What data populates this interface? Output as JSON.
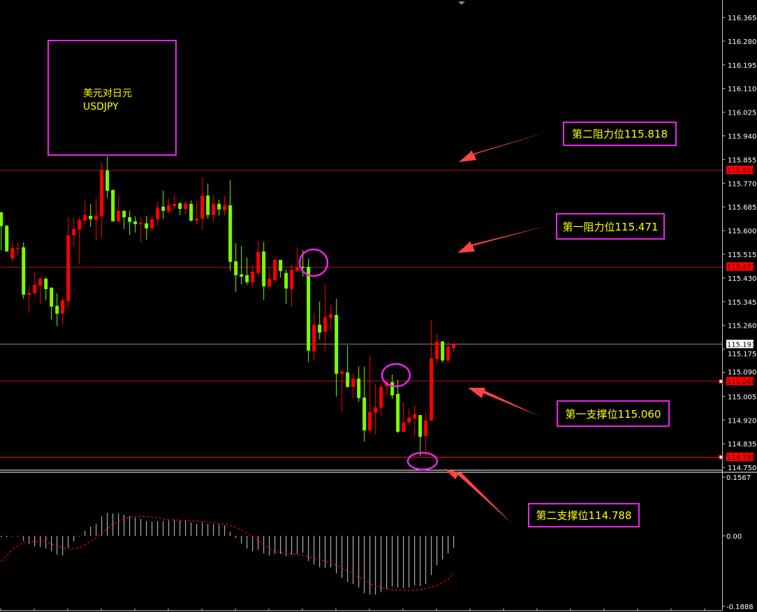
{
  "colors": {
    "background": "#000000",
    "bullish": "#ff0000",
    "bearish": "#7cfc00",
    "annotation_border": "#ee22ee",
    "annotation_text": "#ffff00",
    "arrow": "#ff4444",
    "current_price_line": "#7a8a9a"
  },
  "title_box": {
    "line1": "美元对日元",
    "line2": "USDJPY"
  },
  "annotations": [
    {
      "label": "第二阻力位115.818",
      "level": 115.818
    },
    {
      "label": "第一阻力位115.471",
      "level": 115.471
    },
    {
      "label": "第一支撑位115.060",
      "level": 115.06
    },
    {
      "label": "第二支撑位114.788",
      "level": 114.788
    }
  ],
  "chart_data": [
    {
      "type": "candlestick",
      "ylim": [
        114.73,
        116.425
      ],
      "y_ticks": [
        "116.365",
        "116.280",
        "116.195",
        "116.110",
        "116.025",
        "115.940",
        "115.855",
        "115.770",
        "115.685",
        "115.600",
        "115.515",
        "115.430",
        "115.345",
        "115.260",
        "115.175",
        "115.090",
        "115.005",
        "114.920",
        "114.835",
        "114.750"
      ],
      "price_tags": [
        {
          "label": "115.818",
          "value": 115.818,
          "style": "level"
        },
        {
          "label": "115.471",
          "value": 115.471,
          "style": "level"
        },
        {
          "label": "115.193",
          "value": 115.193,
          "style": "current"
        },
        {
          "label": "115.060",
          "value": 115.06,
          "style": "level"
        },
        {
          "label": "114.788",
          "value": 114.788,
          "style": "level"
        }
      ],
      "candles_ohlc": [
        [
          115.666,
          115.666,
          115.53,
          115.616
        ],
        [
          115.618,
          115.618,
          115.525,
          115.525
        ],
        [
          115.5,
          115.558,
          115.488,
          115.538
        ],
        [
          115.538,
          115.558,
          115.51,
          115.538
        ],
        [
          115.54,
          115.558,
          115.355,
          115.37
        ],
        [
          115.37,
          115.402,
          115.305,
          115.377
        ],
        [
          115.375,
          115.453,
          115.372,
          115.405
        ],
        [
          115.402,
          115.433,
          115.335,
          115.427
        ],
        [
          115.427,
          115.433,
          115.35,
          115.39
        ],
        [
          115.395,
          115.397,
          115.28,
          115.327
        ],
        [
          115.33,
          115.375,
          115.257,
          115.302
        ],
        [
          115.302,
          115.36,
          115.265,
          115.35
        ],
        [
          115.347,
          115.648,
          115.322,
          115.583
        ],
        [
          115.583,
          115.648,
          115.543,
          115.606
        ],
        [
          115.603,
          115.648,
          115.478,
          115.638
        ],
        [
          115.636,
          115.708,
          115.623,
          115.656
        ],
        [
          115.653,
          115.696,
          115.613,
          115.641
        ],
        [
          115.638,
          115.718,
          115.565,
          115.653
        ],
        [
          115.651,
          115.844,
          115.575,
          115.819
        ],
        [
          115.816,
          115.866,
          115.718,
          115.743
        ],
        [
          115.746,
          115.746,
          115.633,
          115.633
        ],
        [
          115.633,
          115.728,
          115.631,
          115.671
        ],
        [
          115.671,
          115.673,
          115.606,
          115.648
        ],
        [
          115.648,
          115.671,
          115.585,
          115.631
        ],
        [
          115.633,
          115.651,
          115.593,
          115.623
        ],
        [
          115.623,
          115.648,
          115.56,
          115.628
        ],
        [
          115.626,
          115.653,
          115.568,
          115.608
        ],
        [
          115.608,
          115.656,
          115.598,
          115.641
        ],
        [
          115.641,
          115.703,
          115.618,
          115.683
        ],
        [
          115.686,
          115.743,
          115.641,
          115.671
        ],
        [
          115.668,
          115.716,
          115.661,
          115.691
        ],
        [
          115.688,
          115.728,
          115.676,
          115.696
        ],
        [
          115.698,
          115.703,
          115.656,
          115.678
        ],
        [
          115.678,
          115.706,
          115.658,
          115.696
        ],
        [
          115.696,
          115.708,
          115.633,
          115.636
        ],
        [
          115.636,
          115.706,
          115.621,
          115.643
        ],
        [
          115.643,
          115.791,
          115.603,
          115.726
        ],
        [
          115.726,
          115.769,
          115.643,
          115.656
        ],
        [
          115.656,
          115.728,
          115.633,
          115.696
        ],
        [
          115.696,
          115.711,
          115.653,
          115.676
        ],
        [
          115.673,
          115.726,
          115.653,
          115.691
        ],
        [
          115.691,
          115.781,
          115.455,
          115.488
        ],
        [
          115.49,
          115.555,
          115.38,
          115.44
        ],
        [
          115.443,
          115.545,
          115.407,
          115.435
        ],
        [
          115.44,
          115.503,
          115.405,
          115.415
        ],
        [
          115.415,
          115.478,
          115.395,
          115.453
        ],
        [
          115.448,
          115.563,
          115.44,
          115.523
        ],
        [
          115.525,
          115.56,
          115.352,
          115.4
        ],
        [
          115.4,
          115.47,
          115.387,
          115.427
        ],
        [
          115.422,
          115.498,
          115.417,
          115.495
        ],
        [
          115.495,
          115.495,
          115.432,
          115.455
        ],
        [
          115.448,
          115.46,
          115.337,
          115.392
        ],
        [
          115.39,
          115.478,
          115.327,
          115.46
        ],
        [
          115.455,
          115.54,
          115.45,
          115.47
        ],
        [
          115.47,
          115.53,
          115.435,
          115.468
        ],
        [
          115.47,
          115.5,
          115.127,
          115.169
        ],
        [
          115.166,
          115.305,
          115.134,
          115.262
        ],
        [
          115.262,
          115.345,
          115.209,
          115.234
        ],
        [
          115.237,
          115.407,
          115.164,
          115.29
        ],
        [
          115.287,
          115.335,
          115.242,
          115.3
        ],
        [
          115.297,
          115.355,
          115.004,
          115.086
        ],
        [
          115.086,
          115.104,
          114.949,
          115.094
        ],
        [
          115.091,
          115.189,
          115.036,
          115.039
        ],
        [
          115.039,
          115.089,
          115.001,
          115.069
        ],
        [
          115.069,
          115.112,
          114.986,
          114.999
        ],
        [
          115.001,
          115.112,
          114.843,
          114.883
        ],
        [
          114.883,
          115.152,
          114.871,
          114.949
        ],
        [
          114.946,
          115.049,
          114.868,
          114.966
        ],
        [
          114.964,
          115.046,
          114.934,
          115.039
        ],
        [
          115.041,
          115.066,
          115.006,
          115.056
        ],
        [
          115.056,
          115.084,
          114.996,
          115.009
        ],
        [
          115.014,
          115.064,
          114.873,
          114.878
        ],
        [
          114.878,
          114.984,
          114.878,
          114.911
        ],
        [
          114.911,
          114.961,
          114.903,
          114.929
        ],
        [
          114.926,
          114.971,
          114.863,
          114.941
        ],
        [
          114.938,
          114.938,
          114.791,
          114.86
        ],
        [
          114.863,
          114.946,
          114.791,
          114.918
        ],
        [
          114.918,
          115.28,
          114.918,
          115.142
        ],
        [
          115.139,
          115.229,
          115.122,
          115.202
        ],
        [
          115.202,
          115.204,
          115.127,
          115.134
        ],
        [
          115.134,
          115.204,
          115.124,
          115.184
        ],
        [
          115.179,
          115.199,
          115.164,
          115.193
        ]
      ]
    },
    {
      "type": "bar+line",
      "ylim": [
        -0.1888,
        0.1567
      ],
      "y_ticks": [
        "0.1567",
        "0.00",
        "-0.1888"
      ],
      "histogram": [
        -0.0037,
        -0.0037,
        -0.0018,
        0,
        -0.0129,
        -0.0221,
        -0.0277,
        -0.0295,
        -0.0332,
        -0.0406,
        -0.0498,
        -0.0517,
        -0.0314,
        -0.0148,
        0,
        0.0129,
        0.024,
        0.0314,
        0.0517,
        0.0609,
        0.059,
        0.059,
        0.0554,
        0.0517,
        0.048,
        0.0443,
        0.0387,
        0.0369,
        0.0387,
        0.0387,
        0.0406,
        0.0424,
        0.0406,
        0.0406,
        0.0351,
        0.0314,
        0.0351,
        0.0314,
        0.0314,
        0.0295,
        0.0277,
        0.0111,
        -0.0055,
        -0.0203,
        -0.0332,
        -0.0406,
        -0.0369,
        -0.0461,
        -0.0517,
        -0.048,
        -0.048,
        -0.0535,
        -0.0498,
        -0.048,
        -0.0443,
        -0.0664,
        -0.0756,
        -0.083,
        -0.0849,
        -0.083,
        -0.0996,
        -0.1107,
        -0.1218,
        -0.1273,
        -0.1365,
        -0.1513,
        -0.155,
        -0.155,
        -0.1476,
        -0.1402,
        -0.1328,
        -0.1365,
        -0.1384,
        -0.1365,
        -0.131,
        -0.1328,
        -0.1273,
        -0.1033,
        -0.0775,
        -0.0627,
        -0.0461,
        -0.0314
      ],
      "signal": [
        -0.0664,
        -0.0535,
        -0.0351,
        -0.0258,
        -0.0166,
        -0.0148,
        -0.0148,
        -0.0148,
        -0.0148,
        -0.0221,
        -0.0277,
        -0.0314,
        -0.0351,
        -0.0332,
        -0.0314,
        -0.024,
        -0.0148,
        -0.0055,
        0.0055,
        0.0185,
        0.0314,
        0.0387,
        0.0443,
        0.0498,
        0.0517,
        0.0517,
        0.0517,
        0.0498,
        0.048,
        0.0443,
        0.0424,
        0.0424,
        0.0406,
        0.0406,
        0.0387,
        0.0387,
        0.0369,
        0.0369,
        0.0351,
        0.0314,
        0.0314,
        0.0277,
        0.0221,
        0.0148,
        0.0074,
        -0.0018,
        -0.0129,
        -0.024,
        -0.0332,
        -0.0406,
        -0.0443,
        -0.0461,
        -0.048,
        -0.0498,
        -0.0517,
        -0.0554,
        -0.059,
        -0.0627,
        -0.0664,
        -0.0701,
        -0.0775,
        -0.0849,
        -0.0923,
        -0.1015,
        -0.1089,
        -0.1162,
        -0.1255,
        -0.1328,
        -0.1365,
        -0.1402,
        -0.1421,
        -0.1439,
        -0.1439,
        -0.1439,
        -0.1439,
        -0.1421,
        -0.1384,
        -0.1347,
        -0.131,
        -0.1236,
        -0.1144,
        -0.0978
      ]
    }
  ]
}
